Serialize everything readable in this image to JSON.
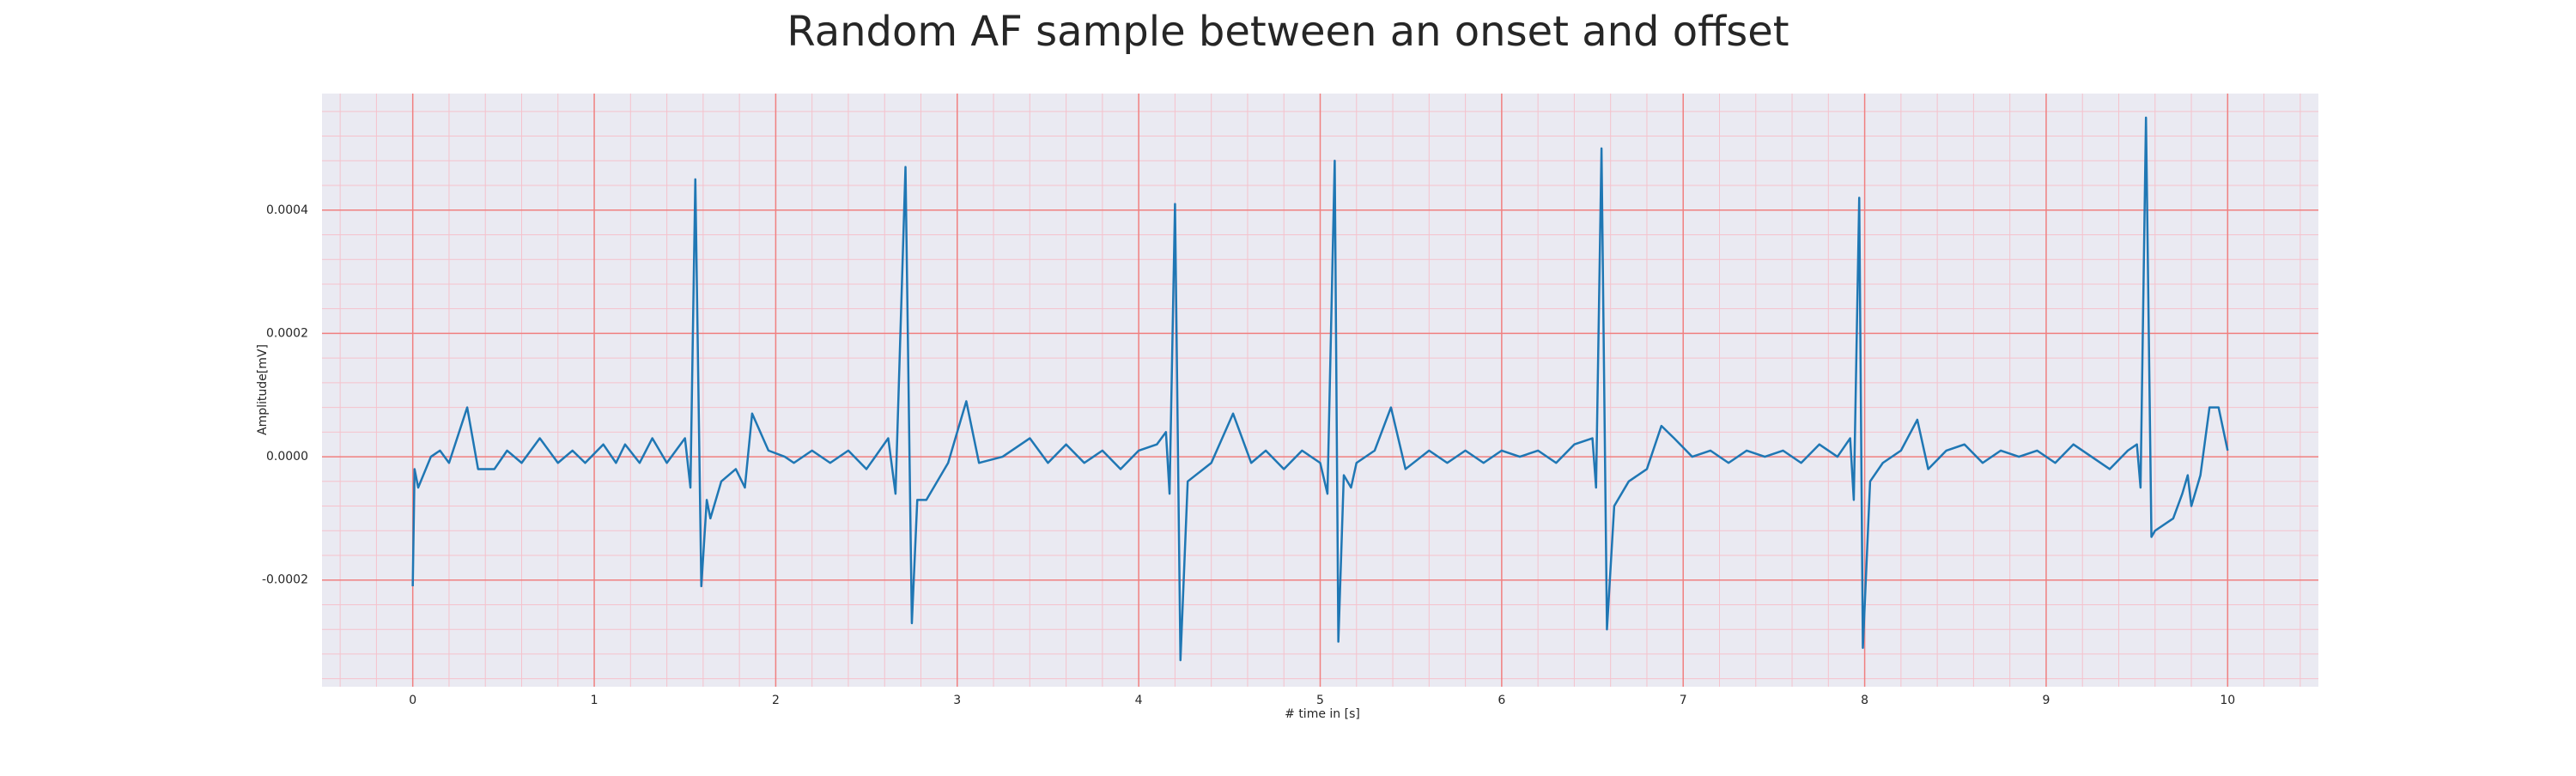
{
  "chart_data": {
    "type": "line",
    "title": "Random AF sample between an onset and offset",
    "xlabel": "# time in [s]",
    "ylabel": "Amplitude[mV]",
    "xlim": [
      -0.5,
      10.5
    ],
    "ylim": [
      -0.000373,
      0.000589
    ],
    "xticks": [
      0,
      1,
      2,
      3,
      4,
      5,
      6,
      7,
      8,
      9,
      10
    ],
    "yticks": [
      {
        "value": -0.0002,
        "label": "-0.0002"
      },
      {
        "value": 0,
        "label": "0.0000"
      },
      {
        "value": 0.0002,
        "label": "0.0002"
      },
      {
        "value": 0.0004,
        "label": "0.0004"
      }
    ],
    "grid": true,
    "minor_grid": true,
    "background": "#eaeaf2",
    "grid_color": "#f08080",
    "minor_grid_color": "#f5c2cc",
    "series": [
      {
        "color": "#1f77b4",
        "x": [
          0,
          0.01,
          0.03,
          0.1,
          0.15,
          0.2,
          0.3,
          0.36,
          0.45,
          0.52,
          0.6,
          0.7,
          0.8,
          0.88,
          0.95,
          1.05,
          1.12,
          1.17,
          1.25,
          1.32,
          1.4,
          1.5,
          1.53,
          1.557,
          1.59,
          1.62,
          1.64,
          1.7,
          1.78,
          1.83,
          1.87,
          1.96,
          2.05,
          2.1,
          2.2,
          2.3,
          2.4,
          2.5,
          2.62,
          2.66,
          2.715,
          2.75,
          2.78,
          2.83,
          2.95,
          3.05,
          3.12,
          3.25,
          3.4,
          3.5,
          3.6,
          3.7,
          3.8,
          3.9,
          4.0,
          4.1,
          4.15,
          4.17,
          4.2,
          4.23,
          4.27,
          4.4,
          4.52,
          4.62,
          4.7,
          4.8,
          4.9,
          5.0,
          5.04,
          5.08,
          5.1,
          5.13,
          5.17,
          5.2,
          5.3,
          5.39,
          5.47,
          5.6,
          5.7,
          5.8,
          5.9,
          6.0,
          6.1,
          6.2,
          6.3,
          6.4,
          6.5,
          6.52,
          6.55,
          6.58,
          6.62,
          6.7,
          6.8,
          6.88,
          6.95,
          7.05,
          7.15,
          7.25,
          7.35,
          7.45,
          7.55,
          7.65,
          7.75,
          7.85,
          7.92,
          7.94,
          7.97,
          7.99,
          8.03,
          8.1,
          8.2,
          8.29,
          8.35,
          8.45,
          8.55,
          8.65,
          8.75,
          8.85,
          8.95,
          9.05,
          9.15,
          9.25,
          9.35,
          9.45,
          9.5,
          9.52,
          9.55,
          9.58,
          9.6,
          9.7,
          9.75,
          9.78,
          9.8,
          9.85,
          9.9,
          9.95,
          10.0
        ],
        "values": [
          -0.00021,
          -2e-05,
          -5e-05,
          0,
          1e-05,
          -1e-05,
          8e-05,
          -2e-05,
          -2e-05,
          1e-05,
          -1e-05,
          3e-05,
          -1e-05,
          1e-05,
          -1e-05,
          2e-05,
          -1e-05,
          2e-05,
          -1e-05,
          3e-05,
          -1e-05,
          3e-05,
          -5e-05,
          0.00045,
          -0.00021,
          -7e-05,
          -0.0001,
          -4e-05,
          -2e-05,
          -5e-05,
          7e-05,
          1e-05,
          0,
          -1e-05,
          1e-05,
          -1e-05,
          1e-05,
          -2e-05,
          3e-05,
          -6e-05,
          0.00047,
          -0.00027,
          -7e-05,
          -7e-05,
          -1e-05,
          9e-05,
          -1e-05,
          0,
          3e-05,
          -1e-05,
          2e-05,
          -1e-05,
          1e-05,
          -2e-05,
          1e-05,
          2e-05,
          4e-05,
          -6e-05,
          0.00041,
          -0.00033,
          -4e-05,
          -1e-05,
          7e-05,
          -1e-05,
          1e-05,
          -2e-05,
          1e-05,
          -1e-05,
          -6e-05,
          0.00048,
          -0.0003,
          -3e-05,
          -5e-05,
          -1e-05,
          1e-05,
          8e-05,
          -2e-05,
          1e-05,
          -1e-05,
          1e-05,
          -1e-05,
          1e-05,
          0,
          1e-05,
          -1e-05,
          2e-05,
          3e-05,
          -5e-05,
          0.0005,
          -0.00028,
          -8e-05,
          -4e-05,
          -2e-05,
          5e-05,
          3e-05,
          0,
          1e-05,
          -1e-05,
          1e-05,
          0,
          1e-05,
          -1e-05,
          2e-05,
          0,
          3e-05,
          -7e-05,
          0.00042,
          -0.00031,
          -4e-05,
          -1e-05,
          1e-05,
          6e-05,
          -2e-05,
          1e-05,
          2e-05,
          -1e-05,
          1e-05,
          0,
          1e-05,
          -1e-05,
          2e-05,
          0,
          -2e-05,
          1e-05,
          2e-05,
          -5e-05,
          0.00055,
          -0.00013,
          -0.00012,
          -0.0001,
          -6e-05,
          -3e-05,
          -8e-05,
          -3e-05,
          8e-05,
          8e-05,
          1e-05
        ]
      }
    ]
  }
}
